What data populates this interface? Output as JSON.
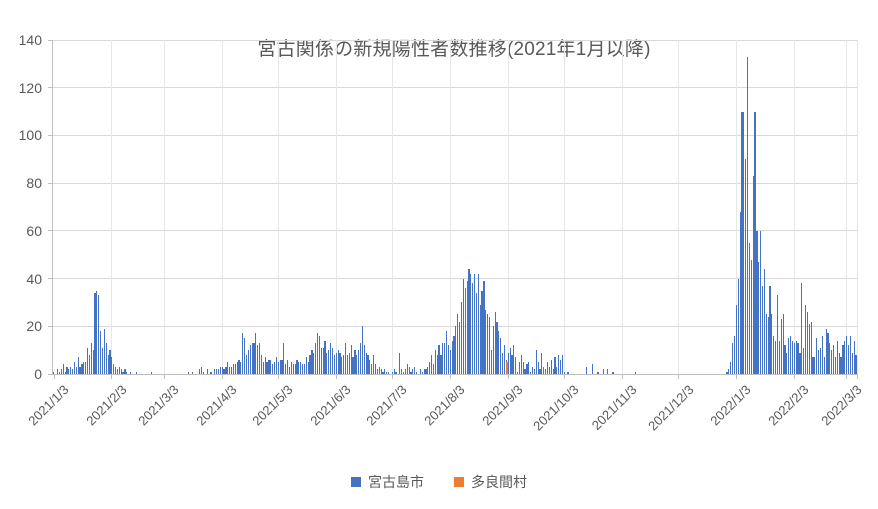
{
  "title": "宮古関係の新規陽性者数推移(2021年1月以降)",
  "legend": {
    "items": [
      {
        "label": "宮古島市",
        "color": "#4472C4"
      },
      {
        "label": "多良間村",
        "color": "#ED7D31"
      }
    ]
  },
  "colors": {
    "bar_blue": "#4472C4",
    "bar_orange": "#ED7D31",
    "axis_line": "#BFBFBF",
    "gridline": "#D9D9D9",
    "label_text": "#595959",
    "background": "#FFFFFF"
  },
  "chart_data": {
    "type": "bar",
    "title": "宮古関係の新規陽性者数推移(2021年1月以降)",
    "xlabel": "",
    "ylabel": "",
    "ylim": [
      0,
      140
    ],
    "yticks": [
      0,
      20,
      40,
      60,
      80,
      100,
      120,
      140
    ],
    "grid": true,
    "legend_position": "bottom",
    "x_unit": "day",
    "start_date": "2021/1/3",
    "num_days": 430,
    "x_tick_labels": [
      "2021/1/3",
      "2021/2/3",
      "2021/3/3",
      "2021/4/3",
      "2021/5/3",
      "2021/6/3",
      "2021/7/3",
      "2021/8/3",
      "2021/9/3",
      "2021/10/3",
      "2021/11/3",
      "2021/12/3",
      "2022/1/3",
      "2022/2/3",
      "2022/3/3"
    ],
    "x_tick_day_offsets": [
      0,
      31,
      59,
      90,
      120,
      151,
      181,
      212,
      243,
      273,
      304,
      334,
      365,
      396,
      424
    ],
    "series": [
      {
        "name": "宮古島市",
        "color": "#4472C4",
        "values": [
          1,
          0,
          2,
          1,
          2,
          4,
          1,
          3,
          2,
          3,
          2,
          5,
          3,
          7,
          3,
          4,
          5,
          5,
          11,
          8,
          13,
          10,
          34,
          35,
          33,
          18,
          11,
          19,
          13,
          8,
          10,
          7,
          4,
          3,
          2,
          3,
          2,
          1,
          2,
          1,
          0,
          1,
          0,
          0,
          1,
          0,
          0,
          0,
          0,
          0,
          0,
          0,
          1,
          0,
          0,
          0,
          0,
          0,
          0,
          0,
          0,
          0,
          0,
          0,
          0,
          0,
          0,
          0,
          0,
          0,
          0,
          0,
          1,
          0,
          1,
          0,
          0,
          0,
          2,
          3,
          1,
          0,
          2,
          0,
          1,
          0,
          2,
          2,
          2,
          3,
          3,
          2,
          3,
          5,
          3,
          3,
          4,
          4,
          5,
          6,
          5,
          17,
          15,
          8,
          10,
          12,
          13,
          13,
          17,
          12,
          13,
          8,
          5,
          7,
          5,
          6,
          6,
          4,
          5,
          7,
          5,
          6,
          6,
          13,
          4,
          6,
          3,
          5,
          4,
          4,
          6,
          5,
          5,
          4,
          4,
          7,
          5,
          8,
          10,
          9,
          13,
          17,
          16,
          11,
          11,
          14,
          9,
          10,
          13,
          11,
          8,
          9,
          10,
          9,
          7,
          8,
          13,
          8,
          9,
          12,
          7,
          10,
          8,
          10,
          13,
          20,
          12,
          9,
          8,
          6,
          4,
          8,
          4,
          2,
          3,
          2,
          1,
          2,
          1,
          1,
          0,
          1,
          2,
          1,
          0,
          9,
          2,
          1,
          2,
          4,
          3,
          1,
          2,
          3,
          1,
          0,
          2,
          1,
          2,
          2,
          3,
          5,
          8,
          4,
          10,
          8,
          12,
          8,
          13,
          13,
          18,
          12,
          10,
          14,
          16,
          20,
          25,
          22,
          30,
          40,
          36,
          39,
          44,
          42,
          38,
          42,
          34,
          42,
          29,
          35,
          39,
          27,
          25,
          24,
          10,
          20,
          26,
          22,
          18,
          15,
          9,
          12,
          6,
          9,
          11,
          8,
          12,
          7,
          1,
          5,
          8,
          5,
          2,
          4,
          5,
          1,
          3,
          2,
          10,
          5,
          2,
          9,
          3,
          2,
          5,
          3,
          6,
          2,
          7,
          3,
          8,
          6,
          8,
          1,
          0,
          1,
          0,
          0,
          0,
          0,
          0,
          0,
          0,
          0,
          0,
          3,
          0,
          0,
          4,
          0,
          0,
          1,
          0,
          0,
          2,
          0,
          2,
          0,
          0,
          1,
          0,
          0,
          0,
          0,
          0,
          0,
          0,
          0,
          0,
          0,
          0,
          1,
          0,
          0,
          0,
          0,
          0,
          0,
          0,
          0,
          0,
          0,
          0,
          0,
          0,
          0,
          0,
          0,
          0,
          0,
          0,
          0,
          0,
          0,
          0,
          0,
          0,
          0,
          0,
          0,
          0,
          0,
          0,
          0,
          0,
          0,
          0,
          0,
          0,
          0,
          0,
          0,
          0,
          0,
          0,
          0,
          0,
          0,
          0,
          0,
          1,
          2,
          5,
          13,
          16,
          29,
          40,
          68,
          110,
          110,
          90,
          133,
          55,
          48,
          83,
          110,
          60,
          47,
          60,
          37,
          44,
          25,
          24,
          37,
          25,
          16,
          14,
          33,
          14,
          23,
          25,
          12,
          9,
          15,
          16,
          14,
          13,
          14,
          13,
          9,
          38,
          11,
          29,
          26,
          21,
          22,
          7,
          7,
          15,
          10,
          11,
          16,
          7,
          19,
          17,
          13,
          10,
          12,
          7,
          14,
          9,
          7,
          12,
          14,
          16,
          12,
          16,
          9,
          14,
          8
        ]
      },
      {
        "name": "多良間村",
        "color": "#ED7D31",
        "values_sparse": [
          [
            242,
            5
          ]
        ]
      }
    ]
  }
}
